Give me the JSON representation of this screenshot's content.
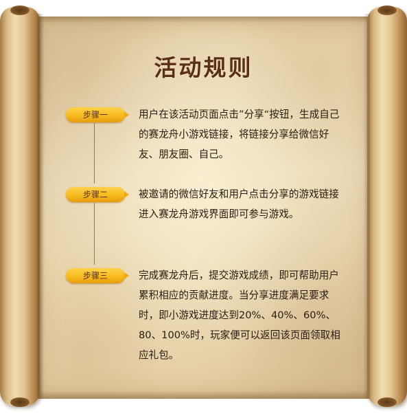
{
  "title": "活动规则",
  "steps": [
    {
      "label": "步骤一",
      "text": "用户在该活动页面点击”分享“按钮，生成自己的赛龙舟小游戏链接，将链接分享给微信好友、朋友圈、自己。"
    },
    {
      "label": "步骤二",
      "text": "被邀请的微信好友和用户点击分享的游戏链接进入赛龙舟游戏界面即可参与游戏。"
    },
    {
      "label": "步骤三",
      "text": "完成赛龙舟后，提交游戏成绩，即可帮助用户累积相应的贡献进度。当分享进度满足要求时，即小游戏进度达到20%、40%、60%、80、100%时，玩家便可以返回该页面领取相应礼包。"
    }
  ],
  "colors": {
    "badge": "#f6b81c",
    "title": "#5a2f12",
    "text": "#2a1b10",
    "parchment": "#f2e2bf"
  }
}
